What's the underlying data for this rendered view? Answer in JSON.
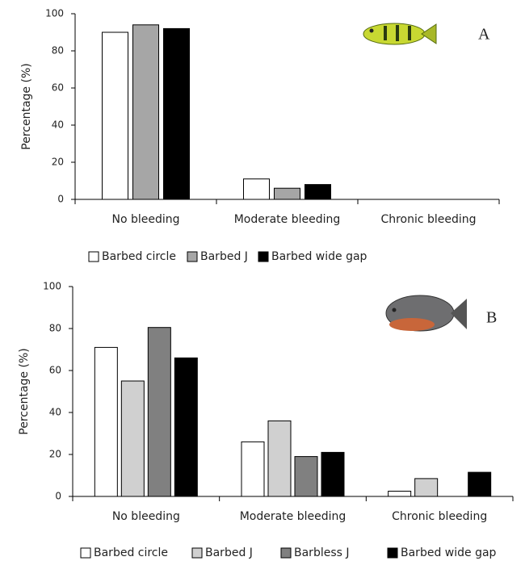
{
  "chart_data": [
    {
      "type": "bar",
      "y_label": "Percentage (%)",
      "annotation": "A",
      "categories": [
        "No bleeding",
        "Moderate bleeding",
        "Chronic bleeding"
      ],
      "series": [
        {
          "name": "Barbed circle",
          "color": "#ffffff",
          "values": [
            90,
            11,
            0
          ]
        },
        {
          "name": "Barbed J",
          "color": "#a6a6a6",
          "values": [
            94,
            6,
            0
          ]
        },
        {
          "name": "Barbed wide gap",
          "color": "#000000",
          "values": [
            92,
            8,
            0
          ]
        }
      ],
      "ylim": [
        0,
        100
      ],
      "yticks": [
        0,
        20,
        40,
        60,
        80,
        100
      ]
    },
    {
      "type": "bar",
      "y_label": "Percentage (%)",
      "annotation": "B",
      "categories": [
        "No bleeding",
        "Moderate bleeding",
        "Chronic bleeding"
      ],
      "series": [
        {
          "name": "Barbed circle",
          "color": "#ffffff",
          "values": [
            71,
            26,
            2.5
          ]
        },
        {
          "name": "Barbed J",
          "color": "#d0d0d0",
          "values": [
            55,
            36,
            8.5
          ]
        },
        {
          "name": "Barbless J",
          "color": "#808080",
          "values": [
            80.5,
            19,
            0
          ]
        },
        {
          "name": "Barbed wide gap",
          "color": "#000000",
          "values": [
            66,
            21,
            11.5
          ]
        }
      ],
      "ylim": [
        0,
        100
      ],
      "yticks": [
        0,
        20,
        40,
        60,
        80,
        100
      ]
    }
  ]
}
